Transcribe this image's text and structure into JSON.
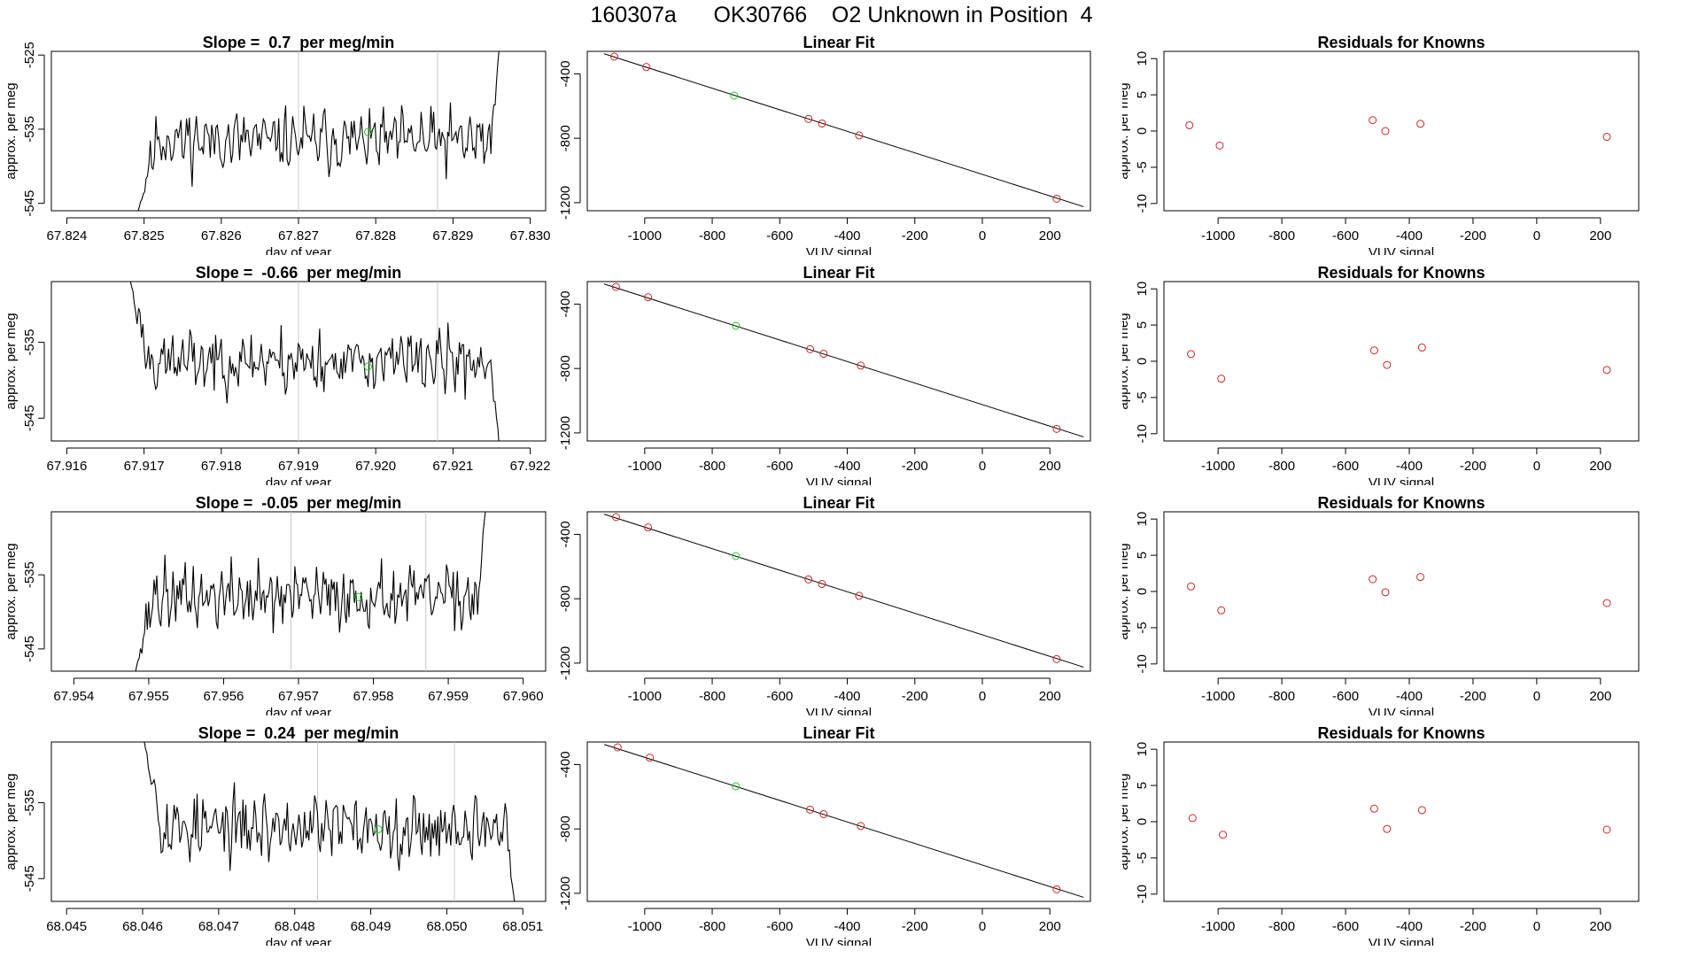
{
  "header": {
    "title": "160307a      OK30766    O2 Unknown in Position  4"
  },
  "colors": {
    "data_line": "#000000",
    "guide_line": "#c8c8c8",
    "known_point": "#cd2626",
    "unknown_point": "#22cc22",
    "axis": "#000000"
  },
  "chart_data": [
    {
      "type": "line",
      "title": "Slope =  0.7  per meg/min",
      "xlabel": "day of year",
      "ylabel": "approx. per meg",
      "xlim": [
        67.8238,
        67.8302
      ],
      "ylim": [
        -546,
        -524.5
      ],
      "xticks": [
        "67.824",
        "67.825",
        "67.826",
        "67.827",
        "67.828",
        "67.829",
        "67.830"
      ],
      "xtick_values": [
        67.824,
        67.825,
        67.826,
        67.827,
        67.828,
        67.829,
        67.83
      ],
      "yticks": [
        "-545",
        "-535",
        "-525"
      ],
      "ytick_values": [
        -545,
        -535,
        -525
      ],
      "vertical_lines": [
        67.827,
        67.8288
      ],
      "series_range": [
        67.8249,
        67.8296
      ],
      "start_level": -547,
      "end_level": -524,
      "mean": -536.5,
      "amplitude": 1.6,
      "seed": 11,
      "unknown_point": {
        "x": 67.8279,
        "y": -535.4
      }
    },
    {
      "type": "scatter",
      "title": "Linear Fit",
      "xlabel": "VUV signal",
      "ylabel": "approx. per meg",
      "xlim": [
        -1170,
        320
      ],
      "ylim": [
        -1250,
        -260
      ],
      "xticks": [
        "-1000",
        "-800",
        "-600",
        "-400",
        "-200",
        "0",
        "200"
      ],
      "xtick_values": [
        -1000,
        -800,
        -600,
        -400,
        -200,
        0,
        200
      ],
      "yticks": [
        "-1200",
        "-800",
        "-400"
      ],
      "ytick_values": [
        -1200,
        -800,
        -400
      ],
      "fit_line": {
        "x": [
          -1120,
          300
        ],
        "y": [
          -275,
          -1225
        ]
      },
      "known_points": {
        "x": [
          -1090,
          -995,
          -515,
          -475,
          -365,
          220
        ],
        "y": [
          -293,
          -357,
          -680,
          -708,
          -782,
          -1175
        ]
      },
      "unknown_point": {
        "x": -735,
        "y": -535
      }
    },
    {
      "type": "scatter",
      "title": "Residuals for Knowns",
      "xlabel": "VUV signal",
      "ylabel": "approx. per meg",
      "xlim": [
        -1170,
        320
      ],
      "ylim": [
        -11,
        11
      ],
      "xticks": [
        "-1000",
        "-800",
        "-600",
        "-400",
        "-200",
        "0",
        "200"
      ],
      "xtick_values": [
        -1000,
        -800,
        -600,
        -400,
        -200,
        0,
        200
      ],
      "yticks": [
        "-10",
        "-5",
        "0",
        "5",
        "10"
      ],
      "ytick_values": [
        -10,
        -5,
        0,
        5,
        10
      ],
      "points": {
        "x": [
          -1090,
          -995,
          -515,
          -475,
          -365,
          220
        ],
        "y": [
          0.8,
          -2.0,
          1.5,
          0.0,
          1.0,
          -0.8
        ]
      }
    },
    {
      "type": "line",
      "title": "Slope =  -0.66  per meg/min",
      "xlabel": "day of year",
      "ylabel": "approx. per meg",
      "xlim": [
        67.9158,
        67.9222
      ],
      "ylim": [
        -548,
        -527
      ],
      "xticks": [
        "67.916",
        "67.917",
        "67.918",
        "67.919",
        "67.920",
        "67.921",
        "67.922"
      ],
      "xtick_values": [
        67.916,
        67.917,
        67.918,
        67.919,
        67.92,
        67.921,
        67.922
      ],
      "yticks": [
        "-545",
        "-535"
      ],
      "ytick_values": [
        -545,
        -535
      ],
      "vertical_lines": [
        67.919,
        67.9208
      ],
      "series_range": [
        67.9168,
        67.9216
      ],
      "start_level": -526,
      "end_level": -549,
      "mean": -537.5,
      "amplitude": 1.6,
      "seed": 23,
      "unknown_point": {
        "x": 67.9199,
        "y": -538.2
      }
    },
    {
      "type": "scatter",
      "title": "Linear Fit",
      "xlabel": "VUV signal",
      "ylabel": "approx. per meg",
      "xlim": [
        -1170,
        320
      ],
      "ylim": [
        -1250,
        -260
      ],
      "xticks": [
        "-1000",
        "-800",
        "-600",
        "-400",
        "-200",
        "0",
        "200"
      ],
      "xtick_values": [
        -1000,
        -800,
        -600,
        -400,
        -200,
        0,
        200
      ],
      "yticks": [
        "-1200",
        "-800",
        "-400"
      ],
      "ytick_values": [
        -1200,
        -800,
        -400
      ],
      "fit_line": {
        "x": [
          -1120,
          300
        ],
        "y": [
          -275,
          -1225
        ]
      },
      "known_points": {
        "x": [
          -1085,
          -990,
          -510,
          -470,
          -360,
          220
        ],
        "y": [
          -293,
          -357,
          -680,
          -708,
          -782,
          -1175
        ]
      },
      "unknown_point": {
        "x": -730,
        "y": -535
      }
    },
    {
      "type": "scatter",
      "title": "Residuals for Knowns",
      "xlabel": "VUV signal",
      "ylabel": "approx. per meg",
      "xlim": [
        -1170,
        320
      ],
      "ylim": [
        -11,
        11
      ],
      "xticks": [
        "-1000",
        "-800",
        "-600",
        "-400",
        "-200",
        "0",
        "200"
      ],
      "xtick_values": [
        -1000,
        -800,
        -600,
        -400,
        -200,
        0,
        200
      ],
      "yticks": [
        "-10",
        "-5",
        "0",
        "5",
        "10"
      ],
      "ytick_values": [
        -10,
        -5,
        0,
        5,
        10
      ],
      "points": {
        "x": [
          -1085,
          -990,
          -510,
          -470,
          -360,
          220
        ],
        "y": [
          1.0,
          -2.4,
          1.5,
          -0.5,
          1.9,
          -1.2
        ]
      }
    },
    {
      "type": "line",
      "title": "Slope =  -0.05  per meg/min",
      "xlabel": "day of year",
      "ylabel": "approx. per meg",
      "xlim": [
        67.9537,
        67.9603
      ],
      "ylim": [
        -548,
        -526.5
      ],
      "xticks": [
        "67.954",
        "67.955",
        "67.956",
        "67.957",
        "67.958",
        "67.959",
        "67.960"
      ],
      "xtick_values": [
        67.954,
        67.955,
        67.956,
        67.957,
        67.958,
        67.959,
        67.96
      ],
      "yticks": [
        "-545",
        "-535"
      ],
      "ytick_values": [
        -545,
        -535
      ],
      "vertical_lines": [
        67.9569,
        67.9587
      ],
      "series_range": [
        67.9548,
        67.9595
      ],
      "start_level": -549,
      "end_level": -526,
      "mean": -538.0,
      "amplitude": 1.7,
      "seed": 37,
      "unknown_point": {
        "x": 67.9578,
        "y": -538.0
      }
    },
    {
      "type": "scatter",
      "title": "Linear Fit",
      "xlabel": "VUV signal",
      "ylabel": "approx. per meg",
      "xlim": [
        -1170,
        320
      ],
      "ylim": [
        -1250,
        -260
      ],
      "xticks": [
        "-1000",
        "-800",
        "-600",
        "-400",
        "-200",
        "0",
        "200"
      ],
      "xtick_values": [
        -1000,
        -800,
        -600,
        -400,
        -200,
        0,
        200
      ],
      "yticks": [
        "-1200",
        "-800",
        "-400"
      ],
      "ytick_values": [
        -1200,
        -800,
        -400
      ],
      "fit_line": {
        "x": [
          -1120,
          300
        ],
        "y": [
          -275,
          -1225
        ]
      },
      "known_points": {
        "x": [
          -1085,
          -990,
          -515,
          -475,
          -365,
          220
        ],
        "y": [
          -293,
          -357,
          -680,
          -708,
          -782,
          -1175
        ]
      },
      "unknown_point": {
        "x": -730,
        "y": -535
      }
    },
    {
      "type": "scatter",
      "title": "Residuals for Knowns",
      "xlabel": "VUV signal",
      "ylabel": "approx. per meg",
      "xlim": [
        -1170,
        320
      ],
      "ylim": [
        -11,
        11
      ],
      "xticks": [
        "-1000",
        "-800",
        "-600",
        "-400",
        "-200",
        "0",
        "200"
      ],
      "xtick_values": [
        -1000,
        -800,
        -600,
        -400,
        -200,
        0,
        200
      ],
      "yticks": [
        "-10",
        "-5",
        "0",
        "5",
        "10"
      ],
      "ytick_values": [
        -10,
        -5,
        0,
        5,
        10
      ],
      "points": {
        "x": [
          -1085,
          -990,
          -515,
          -475,
          -365,
          220
        ],
        "y": [
          0.7,
          -2.6,
          1.7,
          -0.1,
          2.0,
          -1.6
        ]
      }
    },
    {
      "type": "line",
      "title": "Slope =  0.24  per meg/min",
      "xlabel": "day of year",
      "ylabel": "approx. per meg",
      "xlim": [
        68.0448,
        68.0513
      ],
      "ylim": [
        -548,
        -527
      ],
      "xticks": [
        "68.045",
        "68.046",
        "68.047",
        "68.048",
        "68.049",
        "68.050",
        "68.051"
      ],
      "xtick_values": [
        68.045,
        68.046,
        68.047,
        68.048,
        68.049,
        68.05,
        68.051
      ],
      "yticks": [
        "-545",
        "-535"
      ],
      "ytick_values": [
        -545,
        -535
      ],
      "vertical_lines": [
        68.0483,
        68.0501
      ],
      "series_range": [
        68.046,
        68.0509
      ],
      "start_level": -526,
      "end_level": -549,
      "mean": -538.3,
      "amplitude": 1.7,
      "seed": 53,
      "unknown_point": {
        "x": 68.0491,
        "y": -538.5
      }
    },
    {
      "type": "scatter",
      "title": "Linear Fit",
      "xlabel": "VUV signal",
      "ylabel": "approx. per meg",
      "xlim": [
        -1170,
        320
      ],
      "ylim": [
        -1250,
        -260
      ],
      "xticks": [
        "-1000",
        "-800",
        "-600",
        "-400",
        "-200",
        "0",
        "200"
      ],
      "xtick_values": [
        -1000,
        -800,
        -600,
        -400,
        -200,
        0,
        200
      ],
      "yticks": [
        "-1200",
        "-800",
        "-400"
      ],
      "ytick_values": [
        -1200,
        -800,
        -400
      ],
      "fit_line": {
        "x": [
          -1120,
          300
        ],
        "y": [
          -275,
          -1225
        ]
      },
      "known_points": {
        "x": [
          -1080,
          -985,
          -510,
          -470,
          -360,
          220
        ],
        "y": [
          -293,
          -357,
          -680,
          -708,
          -782,
          -1175
        ]
      },
      "unknown_point": {
        "x": -730,
        "y": -535
      }
    },
    {
      "type": "scatter",
      "title": "Residuals for Knowns",
      "xlabel": "VUV signal",
      "ylabel": "approx. per meg",
      "xlim": [
        -1170,
        320
      ],
      "ylim": [
        -11,
        11
      ],
      "xticks": [
        "-1000",
        "-800",
        "-600",
        "-400",
        "-200",
        "0",
        "200"
      ],
      "xtick_values": [
        -1000,
        -800,
        -600,
        -400,
        -200,
        0,
        200
      ],
      "yticks": [
        "-10",
        "-5",
        "0",
        "5",
        "10"
      ],
      "ytick_values": [
        -10,
        -5,
        0,
        5,
        10
      ],
      "points": {
        "x": [
          -1080,
          -985,
          -510,
          -470,
          -360,
          220
        ],
        "y": [
          0.5,
          -1.8,
          1.8,
          -1.0,
          1.6,
          -1.1
        ]
      }
    }
  ]
}
